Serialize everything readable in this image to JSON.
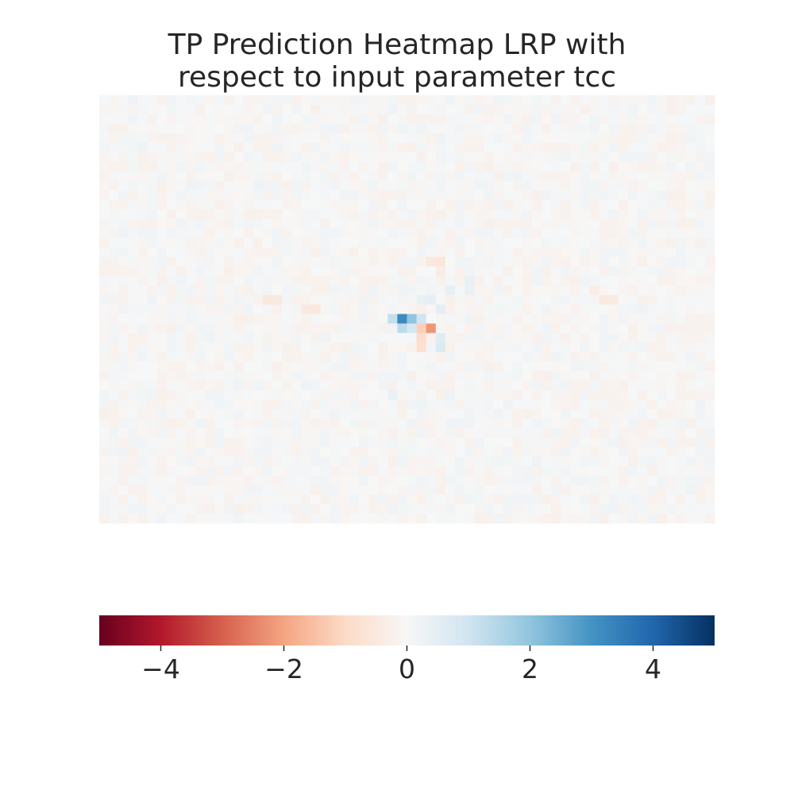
{
  "chart_data": {
    "type": "heatmap",
    "title_lines": [
      "TP Prediction Heatmap LRP with",
      "respect to input parameter tcc"
    ],
    "xlabel": "",
    "ylabel": "",
    "colormap": "RdBu",
    "color_range": [
      -5,
      5
    ],
    "colorbar_ticks": [
      -4,
      -2,
      0,
      2,
      4
    ],
    "colorbar_tick_labels": [
      "−4",
      "−2",
      "0",
      "2",
      "4"
    ],
    "grid": false,
    "legend": "colorbar-bottom",
    "grid_size": {
      "rows": 45,
      "cols": 64
    },
    "baseline_value": 0,
    "notable_cells": [
      {
        "row": 23,
        "col": 30,
        "value": 1.2
      },
      {
        "row": 23,
        "col": 31,
        "value": 3.2
      },
      {
        "row": 23,
        "col": 32,
        "value": 2.0
      },
      {
        "row": 23,
        "col": 33,
        "value": 1.0
      },
      {
        "row": 24,
        "col": 31,
        "value": 1.3
      },
      {
        "row": 24,
        "col": 32,
        "value": 0.9
      },
      {
        "row": 24,
        "col": 33,
        "value": -1.2
      },
      {
        "row": 24,
        "col": 34,
        "value": -2.2
      },
      {
        "row": 25,
        "col": 33,
        "value": -0.9
      },
      {
        "row": 25,
        "col": 35,
        "value": 0.6
      },
      {
        "row": 26,
        "col": 33,
        "value": -0.8
      },
      {
        "row": 26,
        "col": 35,
        "value": 0.7
      },
      {
        "row": 22,
        "col": 35,
        "value": 0.5
      },
      {
        "row": 21,
        "col": 33,
        "value": 0.4
      },
      {
        "row": 21,
        "col": 34,
        "value": 0.45
      },
      {
        "row": 20,
        "col": 36,
        "value": 0.45
      },
      {
        "row": 19,
        "col": 38,
        "value": 0.4
      },
      {
        "row": 20,
        "col": 38,
        "value": 0.35
      },
      {
        "row": 17,
        "col": 34,
        "value": -0.55
      },
      {
        "row": 17,
        "col": 35,
        "value": -0.6
      },
      {
        "row": 18,
        "col": 35,
        "value": -0.4
      },
      {
        "row": 21,
        "col": 17,
        "value": -0.55
      },
      {
        "row": 21,
        "col": 18,
        "value": -0.5
      },
      {
        "row": 22,
        "col": 21,
        "value": -0.5
      },
      {
        "row": 22,
        "col": 22,
        "value": -0.55
      },
      {
        "row": 21,
        "col": 52,
        "value": -0.5
      },
      {
        "row": 21,
        "col": 53,
        "value": -0.45
      },
      {
        "row": 20,
        "col": 51,
        "value": -0.35
      },
      {
        "row": 31,
        "col": 30,
        "value": 0.35
      },
      {
        "row": 31,
        "col": 36,
        "value": 0.3
      },
      {
        "row": 32,
        "col": 33,
        "value": 0.25
      }
    ]
  }
}
